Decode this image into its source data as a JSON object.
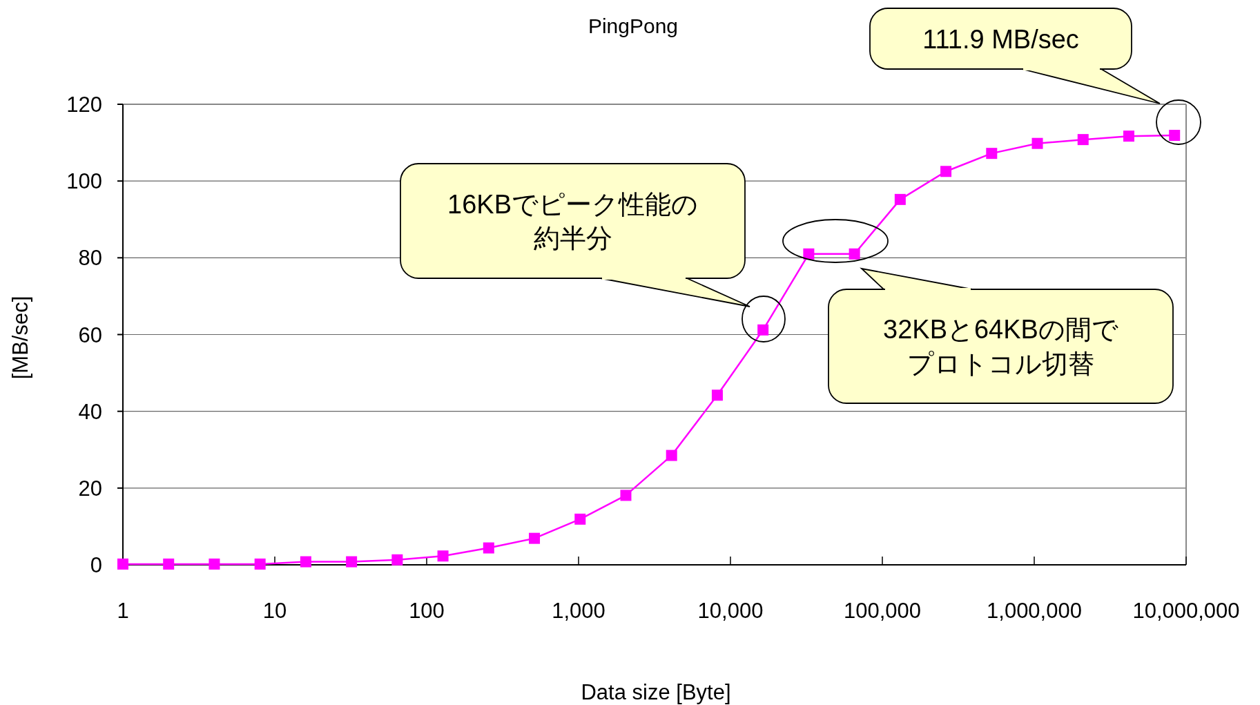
{
  "chart_data": {
    "type": "line",
    "title": "PingPong",
    "xlabel": "Data size [Byte]",
    "ylabel": "[MB/sec]",
    "x": [
      1,
      2,
      4,
      8,
      16,
      32,
      64,
      128,
      256,
      512,
      1024,
      2048,
      4096,
      8192,
      16384,
      32768,
      65536,
      131072,
      262144,
      524288,
      1048576,
      2097152,
      4194304,
      8388608
    ],
    "series": [
      {
        "color": "#ff00ff",
        "values": [
          0.2,
          0.2,
          0.2,
          0.2,
          0.8,
          0.8,
          1.3,
          2.3,
          4.4,
          6.9,
          11.9,
          18.1,
          28.5,
          44.2,
          61.2,
          81,
          81,
          95.2,
          102.5,
          107.2,
          109.8,
          110.8,
          111.7,
          111.9
        ]
      }
    ],
    "log": "x",
    "xlim": [
      1,
      10000000
    ],
    "ylim": [
      0,
      120
    ],
    "xticks": [
      1,
      10,
      100,
      {
        "value": 1000,
        "label": "1,000"
      },
      {
        "value": 10000,
        "label": "10,000"
      },
      {
        "value": 100000,
        "label": "100,000"
      },
      {
        "value": 1000000,
        "label": "1,000,000"
      },
      {
        "value": 10000000,
        "label": "10,000,000"
      }
    ],
    "yticks": [
      0,
      20,
      40,
      60,
      80,
      100,
      120
    ],
    "grid": "y",
    "marker": "square",
    "line_style": "solid",
    "annotations": [
      "111.9 MB/sec",
      "16KBでピーク性能の約半分",
      "32KBと64KBの間でプロトコル切替"
    ]
  }
}
